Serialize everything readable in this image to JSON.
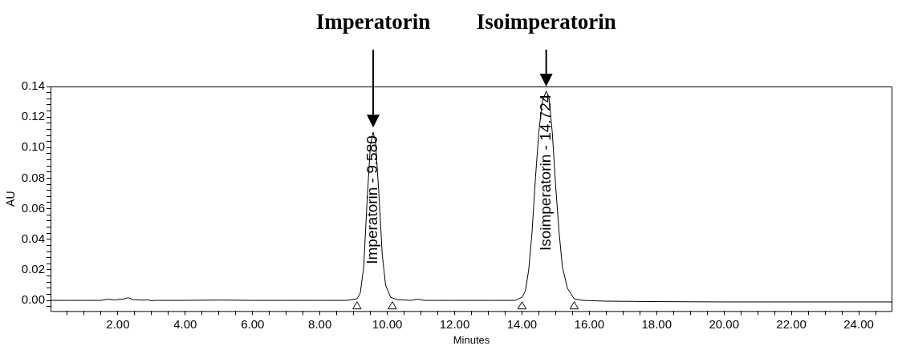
{
  "chart_data": {
    "type": "line",
    "xlabel": "Minutes",
    "ylabel": "AU",
    "xlim": [
      0,
      25
    ],
    "ylim": [
      -0.007,
      0.14
    ],
    "xticks": [
      {
        "value": 0.5,
        "label": null
      },
      {
        "value": 1,
        "label": null
      },
      {
        "value": 1.5,
        "label": null
      },
      {
        "value": 2,
        "label": "2.00"
      },
      {
        "value": 2.5,
        "label": null
      },
      {
        "value": 3,
        "label": null
      },
      {
        "value": 3.5,
        "label": null
      },
      {
        "value": 4,
        "label": "4.00"
      },
      {
        "value": 4.5,
        "label": null
      },
      {
        "value": 5,
        "label": null
      },
      {
        "value": 5.5,
        "label": null
      },
      {
        "value": 6,
        "label": "6.00"
      },
      {
        "value": 6.5,
        "label": null
      },
      {
        "value": 7,
        "label": null
      },
      {
        "value": 7.5,
        "label": null
      },
      {
        "value": 8,
        "label": "8.00"
      },
      {
        "value": 8.5,
        "label": null
      },
      {
        "value": 9,
        "label": null
      },
      {
        "value": 9.5,
        "label": null
      },
      {
        "value": 10,
        "label": "10.00"
      },
      {
        "value": 10.5,
        "label": null
      },
      {
        "value": 11,
        "label": null
      },
      {
        "value": 11.5,
        "label": null
      },
      {
        "value": 12,
        "label": "12.00"
      },
      {
        "value": 12.5,
        "label": null
      },
      {
        "value": 13,
        "label": null
      },
      {
        "value": 13.5,
        "label": null
      },
      {
        "value": 14,
        "label": "14.00"
      },
      {
        "value": 14.5,
        "label": null
      },
      {
        "value": 15,
        "label": null
      },
      {
        "value": 15.5,
        "label": null
      },
      {
        "value": 16,
        "label": "16.00"
      },
      {
        "value": 16.5,
        "label": null
      },
      {
        "value": 17,
        "label": null
      },
      {
        "value": 17.5,
        "label": null
      },
      {
        "value": 18,
        "label": "18.00"
      },
      {
        "value": 18.5,
        "label": null
      },
      {
        "value": 19,
        "label": null
      },
      {
        "value": 19.5,
        "label": null
      },
      {
        "value": 20,
        "label": "20.00"
      },
      {
        "value": 20.5,
        "label": null
      },
      {
        "value": 21,
        "label": null
      },
      {
        "value": 21.5,
        "label": null
      },
      {
        "value": 22,
        "label": "22.00"
      },
      {
        "value": 22.5,
        "label": null
      },
      {
        "value": 23,
        "label": null
      },
      {
        "value": 23.5,
        "label": null
      },
      {
        "value": 24,
        "label": "24.00"
      },
      {
        "value": 24.5,
        "label": null
      }
    ],
    "yticks": [
      {
        "value": -0.004,
        "label": null
      },
      {
        "value": 0,
        "label": "0.00"
      },
      {
        "value": 0.004,
        "label": null
      },
      {
        "value": 0.008,
        "label": null
      },
      {
        "value": 0.012,
        "label": null
      },
      {
        "value": 0.016,
        "label": null
      },
      {
        "value": 0.02,
        "label": "0.02"
      },
      {
        "value": 0.024,
        "label": null
      },
      {
        "value": 0.028,
        "label": null
      },
      {
        "value": 0.032,
        "label": null
      },
      {
        "value": 0.036,
        "label": null
      },
      {
        "value": 0.04,
        "label": "0.04"
      },
      {
        "value": 0.044,
        "label": null
      },
      {
        "value": 0.048,
        "label": null
      },
      {
        "value": 0.052,
        "label": null
      },
      {
        "value": 0.056,
        "label": null
      },
      {
        "value": 0.06,
        "label": "0.06"
      },
      {
        "value": 0.064,
        "label": null
      },
      {
        "value": 0.068,
        "label": null
      },
      {
        "value": 0.072,
        "label": null
      },
      {
        "value": 0.076,
        "label": null
      },
      {
        "value": 0.08,
        "label": "0.08"
      },
      {
        "value": 0.084,
        "label": null
      },
      {
        "value": 0.088,
        "label": null
      },
      {
        "value": 0.092,
        "label": null
      },
      {
        "value": 0.096,
        "label": null
      },
      {
        "value": 0.1,
        "label": "0.10"
      },
      {
        "value": 0.104,
        "label": null
      },
      {
        "value": 0.108,
        "label": null
      },
      {
        "value": 0.112,
        "label": null
      },
      {
        "value": 0.116,
        "label": null
      },
      {
        "value": 0.12,
        "label": "0.12"
      },
      {
        "value": 0.124,
        "label": null
      },
      {
        "value": 0.128,
        "label": null
      },
      {
        "value": 0.132,
        "label": null
      },
      {
        "value": 0.136,
        "label": null
      },
      {
        "value": 0.14,
        "label": "0.14"
      }
    ],
    "grid": false,
    "legend": false,
    "series": [
      {
        "type": "line",
        "color": "#000000",
        "marker": "none",
        "x": [
          0,
          0.5,
          1.0,
          1.5,
          1.7,
          1.9,
          2.2,
          2.3,
          2.45,
          2.7,
          2.9,
          3.0,
          3.1,
          4,
          5,
          6,
          7,
          8,
          8.8,
          9.1,
          9.2,
          9.3,
          9.4,
          9.5,
          9.58,
          9.65,
          9.75,
          9.85,
          9.95,
          10.1,
          10.3,
          10.7,
          10.9,
          11.1,
          11.5,
          12,
          13,
          13.8,
          14.0,
          14.1,
          14.2,
          14.3,
          14.4,
          14.5,
          14.6,
          14.72,
          14.8,
          14.9,
          15.0,
          15.1,
          15.2,
          15.35,
          15.55,
          15.8,
          16.5,
          18,
          20,
          22,
          24,
          25
        ],
        "values": [
          0,
          0,
          0,
          0,
          0.0008,
          0.0003,
          0.001,
          0.0018,
          0.0005,
          0.0002,
          0.0003,
          -0.0003,
          0,
          0,
          0.0002,
          0,
          0,
          0,
          0,
          0.001,
          0.005,
          0.022,
          0.065,
          0.102,
          0.11,
          0.104,
          0.07,
          0.03,
          0.01,
          0.002,
          0.0005,
          0,
          0.0008,
          0,
          0,
          0,
          0,
          0,
          0.002,
          0.006,
          0.02,
          0.045,
          0.08,
          0.11,
          0.13,
          0.137,
          0.133,
          0.11,
          0.075,
          0.045,
          0.022,
          0.008,
          0.001,
          0,
          -0.0005,
          -0.0008,
          -0.001,
          -0.001,
          -0.001,
          -0.001
        ]
      },
      {
        "type": "scatter",
        "color": "#000000",
        "marker": "triangle",
        "x": [
          9.1,
          10.15,
          14.0,
          15.55
        ],
        "values": [
          -0.004,
          -0.004,
          -0.004,
          -0.004
        ]
      }
    ],
    "annotations": [
      "Imperatorin",
      "Isoimperatorin",
      {
        "text": "Imperatorin - 9.580",
        "x": 9.58,
        "y": 0.11
      },
      {
        "text": "Isoimperatorin - 14.724",
        "x": 14.72,
        "y": 0.137
      }
    ]
  }
}
